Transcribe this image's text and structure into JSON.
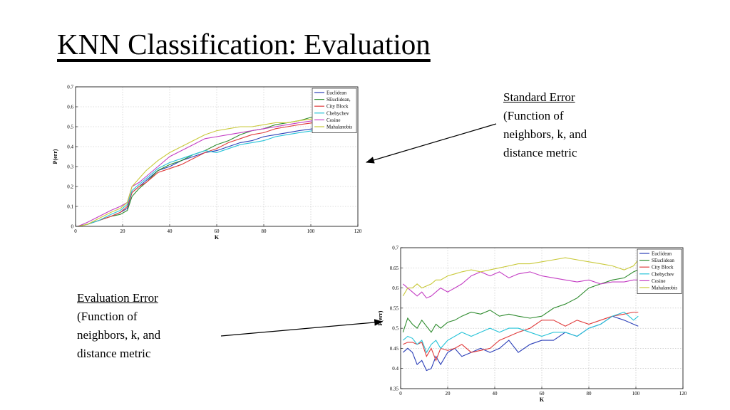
{
  "slide": {
    "title": "KNN Classification:  Evaluation"
  },
  "callouts": {
    "standard": {
      "heading": "Standard Error",
      "body": "(Function of\nneighbors, k, and\ndistance metric"
    },
    "evaluation": {
      "heading": "Evaluation Error",
      "body": "(Function of\nneighbors, k, and\ndistance metric"
    }
  },
  "colors": {
    "Euclidean": "#2b3fb8",
    "SEuclidean": "#2e8b2e",
    "City Block": "#e03b3b",
    "Chebychev": "#27c3d8",
    "Cosine": "#c43ec4",
    "Mahalanobis": "#c9c93a"
  },
  "chart_data": [
    {
      "type": "line",
      "title": "",
      "xlabel": "K",
      "ylabel": "P(err)",
      "xlim": [
        0,
        120
      ],
      "ylim": [
        0,
        0.7
      ],
      "xticks": [
        0,
        20,
        40,
        60,
        80,
        100,
        120
      ],
      "yticks": [
        0,
        0.1,
        0.2,
        0.3,
        0.4,
        0.5,
        0.6,
        0.7
      ],
      "grid": true,
      "legend": "top-right",
      "x": [
        1,
        5,
        10,
        15,
        19,
        22,
        24,
        27,
        30,
        35,
        40,
        45,
        50,
        55,
        60,
        65,
        70,
        75,
        80,
        85,
        90,
        95,
        101
      ],
      "series": [
        {
          "name": "Euclidean",
          "values": [
            0.0,
            0.01,
            0.03,
            0.05,
            0.07,
            0.09,
            0.17,
            0.2,
            0.23,
            0.28,
            0.3,
            0.33,
            0.35,
            0.37,
            0.38,
            0.4,
            0.42,
            0.43,
            0.45,
            0.46,
            0.47,
            0.48,
            0.49
          ]
        },
        {
          "name": "SEuclidean,",
          "values": [
            0.0,
            0.01,
            0.03,
            0.05,
            0.06,
            0.08,
            0.15,
            0.19,
            0.22,
            0.28,
            0.31,
            0.33,
            0.36,
            0.38,
            0.41,
            0.43,
            0.46,
            0.48,
            0.49,
            0.51,
            0.52,
            0.53,
            0.55
          ]
        },
        {
          "name": "City Block",
          "values": [
            0.0,
            0.01,
            0.03,
            0.05,
            0.07,
            0.1,
            0.17,
            0.2,
            0.22,
            0.27,
            0.29,
            0.31,
            0.34,
            0.37,
            0.39,
            0.42,
            0.44,
            0.46,
            0.47,
            0.49,
            0.5,
            0.51,
            0.52
          ]
        },
        {
          "name": "Chebychev",
          "values": [
            0.0,
            0.01,
            0.03,
            0.06,
            0.08,
            0.11,
            0.18,
            0.21,
            0.24,
            0.29,
            0.32,
            0.34,
            0.36,
            0.38,
            0.37,
            0.39,
            0.41,
            0.42,
            0.43,
            0.45,
            0.46,
            0.47,
            0.48
          ]
        },
        {
          "name": "Cosine",
          "values": [
            0.0,
            0.02,
            0.05,
            0.08,
            0.1,
            0.12,
            0.2,
            0.22,
            0.25,
            0.3,
            0.35,
            0.38,
            0.41,
            0.44,
            0.45,
            0.46,
            0.47,
            0.48,
            0.49,
            0.5,
            0.51,
            0.52,
            0.53
          ]
        },
        {
          "name": "Mahalanobis",
          "values": [
            0.0,
            0.01,
            0.04,
            0.07,
            0.09,
            0.12,
            0.2,
            0.24,
            0.28,
            0.33,
            0.37,
            0.4,
            0.43,
            0.46,
            0.48,
            0.49,
            0.5,
            0.5,
            0.51,
            0.52,
            0.52,
            0.53,
            0.54
          ]
        }
      ]
    },
    {
      "type": "line",
      "title": "",
      "xlabel": "K",
      "ylabel": "P(err)",
      "xlim": [
        0,
        120
      ],
      "ylim": [
        0.35,
        0.7
      ],
      "xticks": [
        0,
        20,
        40,
        60,
        80,
        100,
        120
      ],
      "yticks": [
        0.35,
        0.4,
        0.45,
        0.5,
        0.55,
        0.6,
        0.65,
        0.7
      ],
      "grid": true,
      "legend": "top-right",
      "x": [
        1,
        3,
        5,
        7,
        9,
        11,
        13,
        15,
        17,
        20,
        23,
        26,
        30,
        34,
        38,
        42,
        46,
        50,
        55,
        60,
        65,
        70,
        75,
        80,
        85,
        90,
        95,
        99,
        101
      ],
      "series": [
        {
          "name": "Euclidean",
          "values": [
            0.44,
            0.45,
            0.44,
            0.41,
            0.42,
            0.395,
            0.4,
            0.43,
            0.41,
            0.44,
            0.45,
            0.43,
            0.44,
            0.45,
            0.44,
            0.45,
            0.47,
            0.44,
            0.46,
            0.47,
            0.47,
            0.49,
            0.48,
            0.5,
            0.51,
            0.53,
            0.52,
            0.51,
            0.505
          ]
        },
        {
          "name": "SEuclidean",
          "values": [
            0.49,
            0.525,
            0.51,
            0.5,
            0.52,
            0.505,
            0.49,
            0.51,
            0.5,
            0.515,
            0.52,
            0.53,
            0.54,
            0.535,
            0.545,
            0.53,
            0.535,
            0.53,
            0.525,
            0.53,
            0.55,
            0.56,
            0.575,
            0.6,
            0.61,
            0.62,
            0.625,
            0.64,
            0.645
          ]
        },
        {
          "name": "City Block",
          "values": [
            0.46,
            0.465,
            0.465,
            0.46,
            0.465,
            0.43,
            0.45,
            0.42,
            0.45,
            0.445,
            0.45,
            0.46,
            0.44,
            0.445,
            0.45,
            0.47,
            0.48,
            0.49,
            0.5,
            0.52,
            0.52,
            0.505,
            0.52,
            0.51,
            0.52,
            0.53,
            0.535,
            0.54,
            0.54
          ]
        },
        {
          "name": "Chebychev",
          "values": [
            0.47,
            0.48,
            0.475,
            0.46,
            0.47,
            0.44,
            0.46,
            0.47,
            0.45,
            0.47,
            0.48,
            0.49,
            0.48,
            0.49,
            0.5,
            0.49,
            0.5,
            0.5,
            0.49,
            0.48,
            0.49,
            0.49,
            0.48,
            0.5,
            0.51,
            0.53,
            0.54,
            0.52,
            0.53
          ]
        },
        {
          "name": "Cosine",
          "values": [
            0.61,
            0.6,
            0.59,
            0.58,
            0.59,
            0.575,
            0.58,
            0.59,
            0.6,
            0.59,
            0.6,
            0.61,
            0.63,
            0.64,
            0.63,
            0.64,
            0.625,
            0.635,
            0.64,
            0.63,
            0.625,
            0.62,
            0.615,
            0.62,
            0.61,
            0.615,
            0.615,
            0.62,
            0.62
          ]
        },
        {
          "name": "Mahalanobis",
          "values": [
            0.58,
            0.6,
            0.6,
            0.61,
            0.6,
            0.605,
            0.61,
            0.62,
            0.62,
            0.63,
            0.635,
            0.64,
            0.645,
            0.64,
            0.645,
            0.65,
            0.655,
            0.66,
            0.66,
            0.665,
            0.67,
            0.675,
            0.67,
            0.665,
            0.66,
            0.655,
            0.645,
            0.655,
            0.67
          ]
        }
      ]
    }
  ]
}
